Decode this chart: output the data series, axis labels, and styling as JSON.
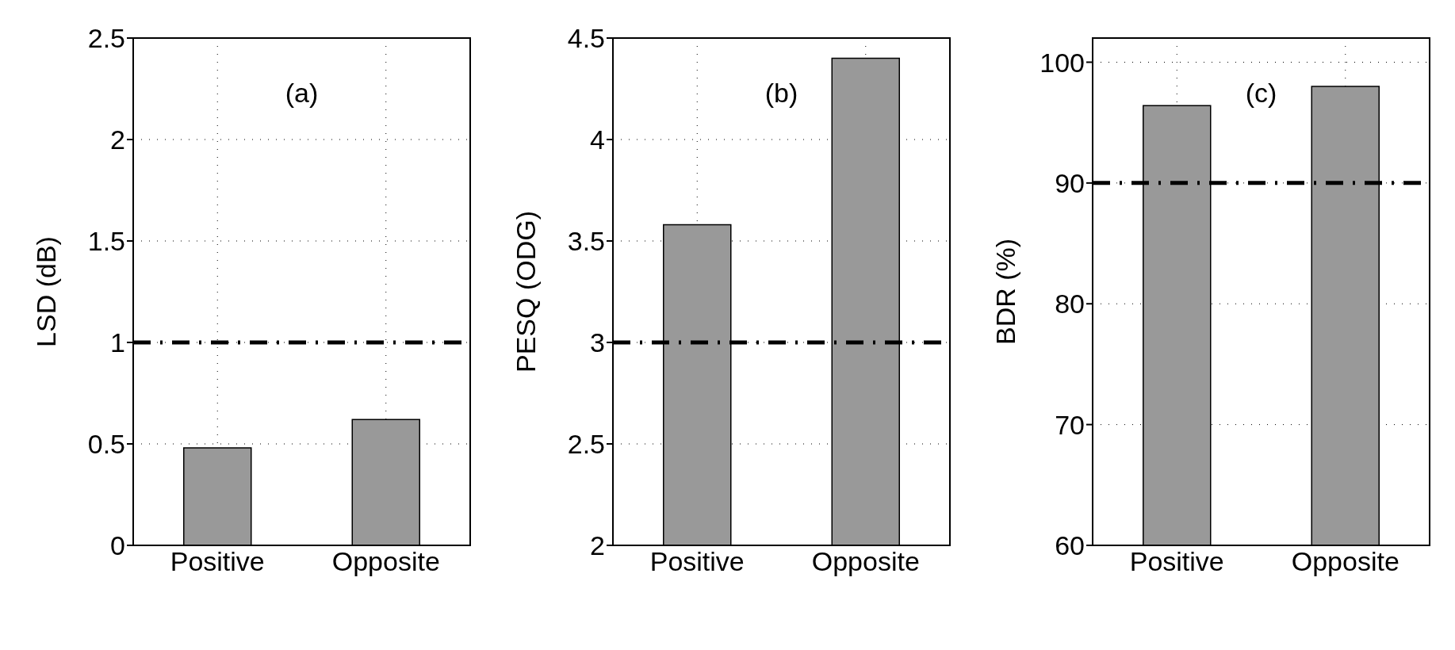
{
  "chart_data": [
    {
      "type": "bar",
      "categories": [
        "Positive",
        "Opposite"
      ],
      "values": [
        0.48,
        0.62
      ],
      "color": "#999999",
      "ylabel": "LSD (dB)",
      "ylim": [
        0,
        2.5
      ],
      "yticks": [
        0,
        0.5,
        1,
        1.5,
        2,
        2.5
      ],
      "grid": true,
      "annotations": [
        "(a)"
      ],
      "ref_lines": [
        {
          "axis": "y",
          "value": 1,
          "color": "#000000",
          "line_style": "dashed"
        }
      ]
    },
    {
      "type": "bar",
      "categories": [
        "Positive",
        "Opposite"
      ],
      "values": [
        3.58,
        4.4
      ],
      "color": "#999999",
      "ylabel": "PESQ (ODG)",
      "ylim": [
        2,
        4.5
      ],
      "yticks": [
        2,
        2.5,
        3,
        3.5,
        4,
        4.5
      ],
      "grid": true,
      "annotations": [
        "(b)"
      ],
      "ref_lines": [
        {
          "axis": "y",
          "value": 3,
          "color": "#000000",
          "line_style": "dashed"
        }
      ]
    },
    {
      "type": "bar",
      "categories": [
        "Positive",
        "Opposite"
      ],
      "values": [
        96.4,
        98.0
      ],
      "color": "#999999",
      "ylabel": "BDR (%)",
      "ylim": [
        60,
        102
      ],
      "yticks": [
        60,
        70,
        80,
        90,
        100
      ],
      "grid": true,
      "annotations": [
        "(c)"
      ],
      "ref_lines": [
        {
          "axis": "y",
          "value": 90,
          "color": "#000000",
          "line_style": "dashed"
        }
      ]
    }
  ]
}
